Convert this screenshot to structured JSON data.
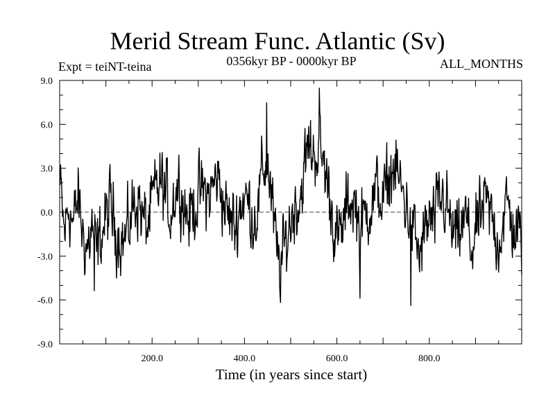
{
  "chart_data": {
    "type": "line",
    "title": "Merid Stream Func. Atlantic (Sv)",
    "subtitle_left": "Expt = teiNT-teina",
    "subtitle_center": "0356kyr BP - 0000kyr BP",
    "subtitle_right": "ALL_MONTHS",
    "xlabel": "Time (in years since start)",
    "ylabel": "",
    "xlim": [
      0,
      1000
    ],
    "ylim": [
      -9,
      9
    ],
    "xticks": [
      200,
      400,
      600,
      800
    ],
    "xtick_labels": [
      "200.0",
      "400.0",
      "600.0",
      "800.0"
    ],
    "yticks": [
      9,
      6,
      3,
      0,
      -3,
      -6,
      -9
    ],
    "ytick_labels": [
      "9.0",
      "6.0",
      "3.0",
      "0.0",
      "-3.0",
      "-6.0",
      "-9.0"
    ],
    "zero_line": true,
    "series": [
      {
        "name": "Merid Stream Func. Atlantic",
        "color": "#000000",
        "x_start": 1,
        "x_step": 1,
        "count": 1000,
        "anchors": [
          [
            0,
            2.0
          ],
          [
            10,
            -1.5
          ],
          [
            20,
            0.5
          ],
          [
            30,
            -1.0
          ],
          [
            40,
            1.0
          ],
          [
            50,
            -1.5
          ],
          [
            60,
            -2.5
          ],
          [
            70,
            -1.0
          ],
          [
            80,
            -3.0
          ],
          [
            90,
            -1.5
          ],
          [
            100,
            -0.5
          ],
          [
            110,
            0.5
          ],
          [
            120,
            -1.0
          ],
          [
            130,
            -1.5
          ],
          [
            140,
            -2.0
          ],
          [
            150,
            -1.0
          ],
          [
            160,
            0.5
          ],
          [
            170,
            1.0
          ],
          [
            180,
            -0.5
          ],
          [
            190,
            -1.0
          ],
          [
            200,
            0.5
          ],
          [
            210,
            1.5
          ],
          [
            220,
            2.0
          ],
          [
            230,
            1.0
          ],
          [
            240,
            0.0
          ],
          [
            250,
            1.5
          ],
          [
            260,
            2.0
          ],
          [
            270,
            0.5
          ],
          [
            280,
            -0.5
          ],
          [
            290,
            0.5
          ],
          [
            300,
            1.0
          ],
          [
            310,
            1.5
          ],
          [
            320,
            1.0
          ],
          [
            330,
            1.5
          ],
          [
            340,
            2.5
          ],
          [
            350,
            1.5
          ],
          [
            360,
            0.0
          ],
          [
            370,
            -0.5
          ],
          [
            380,
            -1.0
          ],
          [
            390,
            0.5
          ],
          [
            400,
            1.0
          ],
          [
            410,
            0.5
          ],
          [
            420,
            -0.5
          ],
          [
            430,
            0.5
          ],
          [
            440,
            3.0
          ],
          [
            450,
            3.5
          ],
          [
            460,
            0.5
          ],
          [
            470,
            -3.0
          ],
          [
            480,
            -3.5
          ],
          [
            490,
            -2.0
          ],
          [
            500,
            -0.5
          ],
          [
            510,
            0.5
          ],
          [
            520,
            1.0
          ],
          [
            530,
            3.0
          ],
          [
            540,
            4.5
          ],
          [
            550,
            4.0
          ],
          [
            560,
            4.5
          ],
          [
            570,
            3.5
          ],
          [
            580,
            2.0
          ],
          [
            590,
            0.0
          ],
          [
            600,
            -2.0
          ],
          [
            610,
            -1.5
          ],
          [
            620,
            0.0
          ],
          [
            630,
            1.0
          ],
          [
            640,
            0.5
          ],
          [
            650,
            -1.0
          ],
          [
            660,
            -0.5
          ],
          [
            670,
            0.5
          ],
          [
            680,
            1.0
          ],
          [
            690,
            1.5
          ],
          [
            700,
            0.5
          ],
          [
            710,
            2.0
          ],
          [
            720,
            3.0
          ],
          [
            730,
            2.5
          ],
          [
            740,
            1.5
          ],
          [
            750,
            0.5
          ],
          [
            760,
            -0.5
          ],
          [
            770,
            -2.0
          ],
          [
            780,
            -3.0
          ],
          [
            790,
            -1.5
          ],
          [
            800,
            -0.5
          ],
          [
            810,
            -1.0
          ],
          [
            820,
            0.5
          ],
          [
            830,
            1.0
          ],
          [
            840,
            0.0
          ],
          [
            850,
            -1.5
          ],
          [
            860,
            -2.0
          ],
          [
            870,
            -1.0
          ],
          [
            880,
            -0.5
          ],
          [
            890,
            -2.5
          ],
          [
            900,
            -1.5
          ],
          [
            910,
            -0.5
          ],
          [
            920,
            0.5
          ],
          [
            930,
            0.0
          ],
          [
            940,
            -1.0
          ],
          [
            950,
            -2.0
          ],
          [
            960,
            -0.5
          ],
          [
            970,
            0.5
          ],
          [
            980,
            -1.0
          ],
          [
            990,
            -1.5
          ],
          [
            1000,
            -2.0
          ]
        ],
        "noise_amplitude": 2.2,
        "peaks": [
          [
            562,
            8.5
          ],
          [
            448,
            7.5
          ],
          [
            760,
            -6.4
          ],
          [
            478,
            -6.2
          ],
          [
            650,
            -5.9
          ],
          [
            75,
            -5.4
          ]
        ]
      }
    ]
  }
}
